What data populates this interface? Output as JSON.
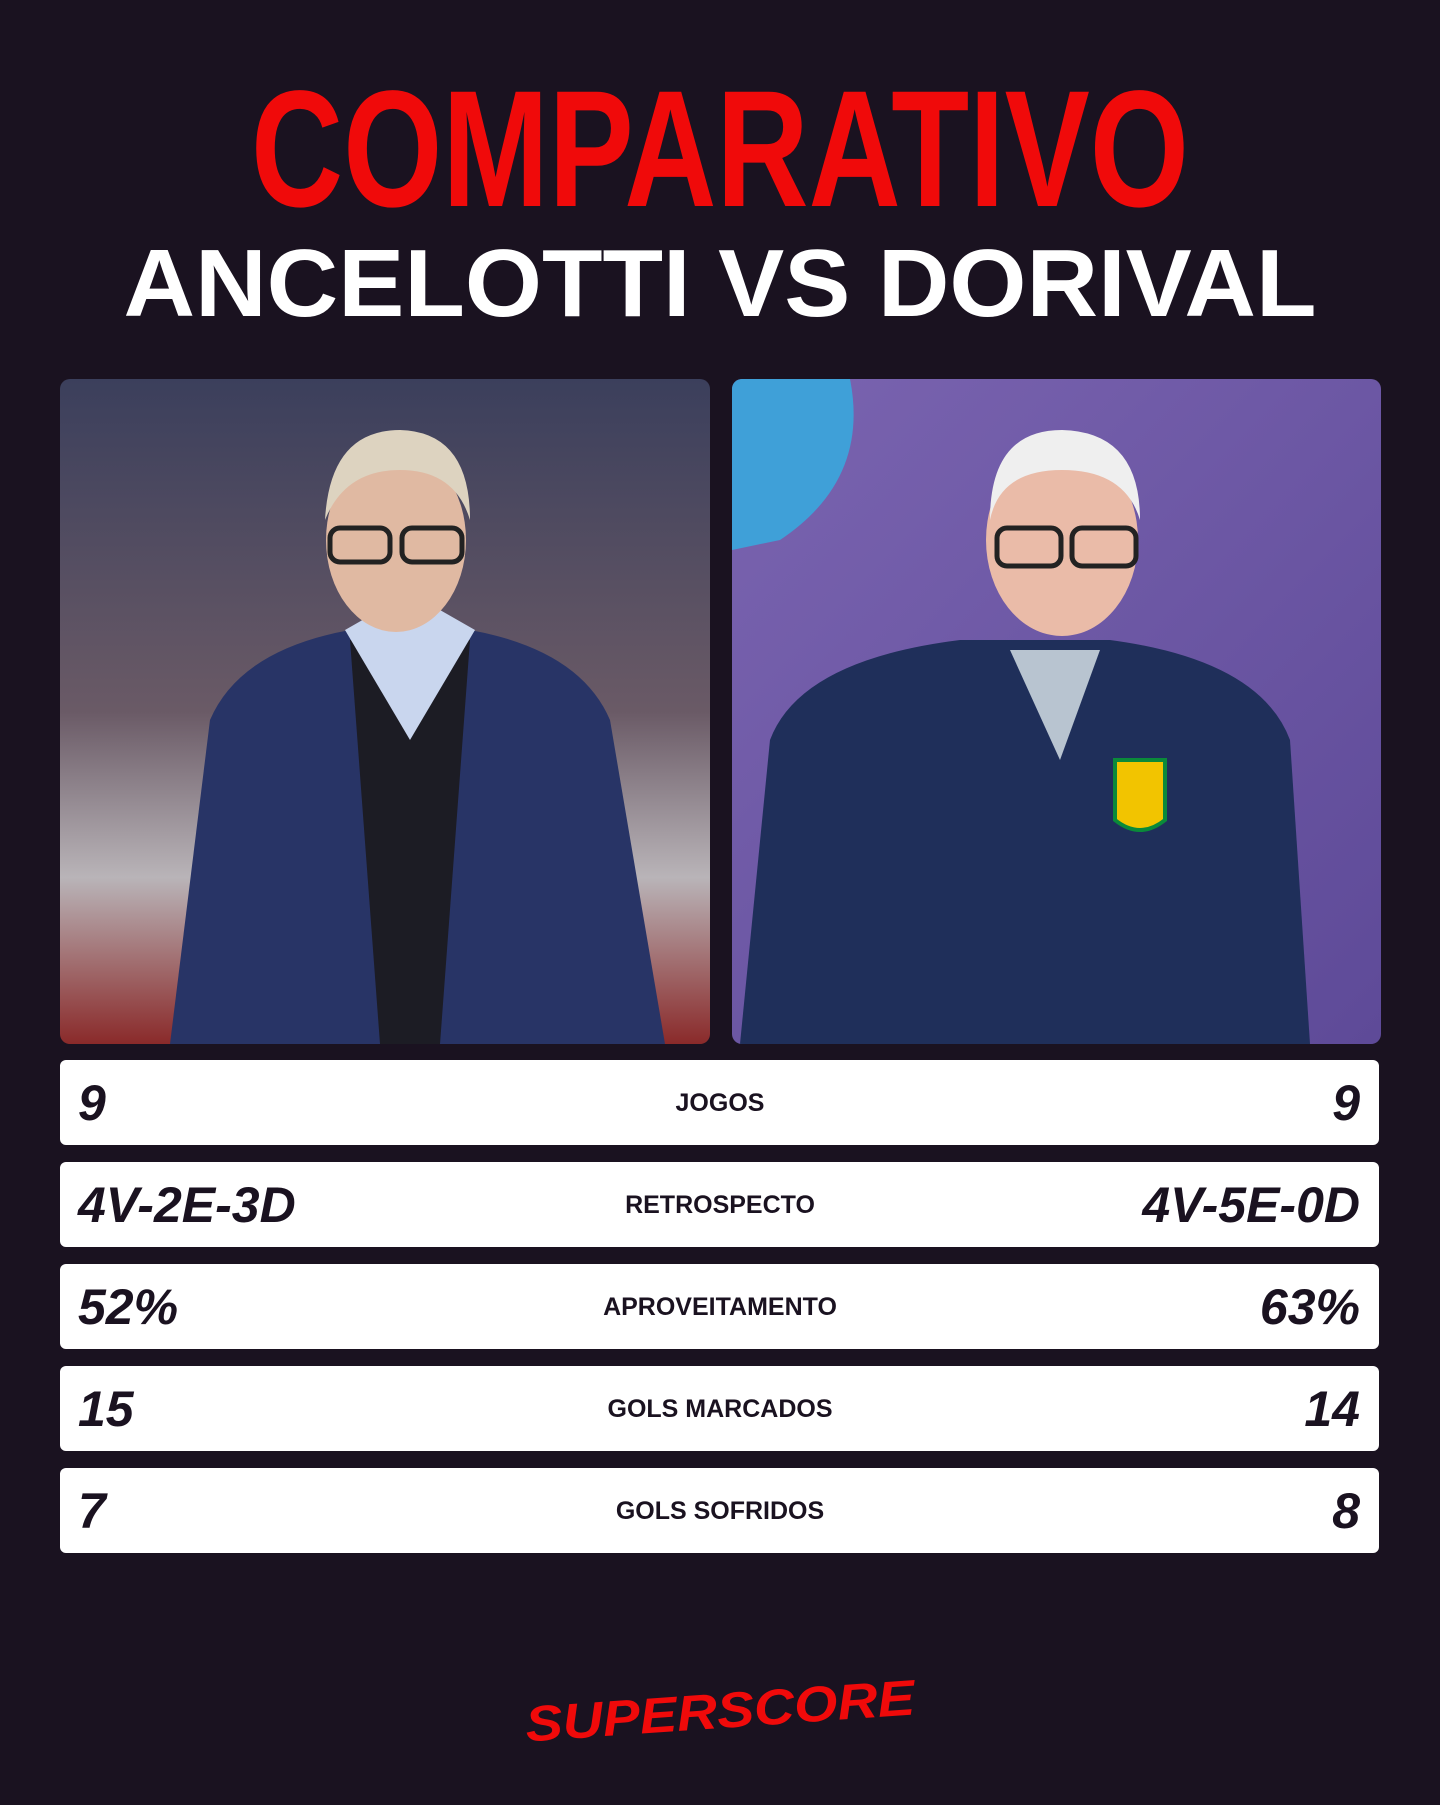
{
  "header": {
    "title": "COMPARATIVO",
    "subtitle": "ANCELOTTI VS DORIVAL"
  },
  "stats": [
    {
      "left": "9",
      "label": "JOGOS",
      "right": "9"
    },
    {
      "left": "4V-2E-3D",
      "label": "RETROSPECTO",
      "right": "4V-5E-0D"
    },
    {
      "left": "52%",
      "label": "APROVEITAMENTO",
      "right": "63%"
    },
    {
      "left": "15",
      "label": "GOLS MARCADOS",
      "right": "14"
    },
    {
      "left": "7",
      "label": "GOLS SOFRIDOS",
      "right": "8"
    }
  ],
  "footer": {
    "brand": "SUPERSCORE"
  }
}
